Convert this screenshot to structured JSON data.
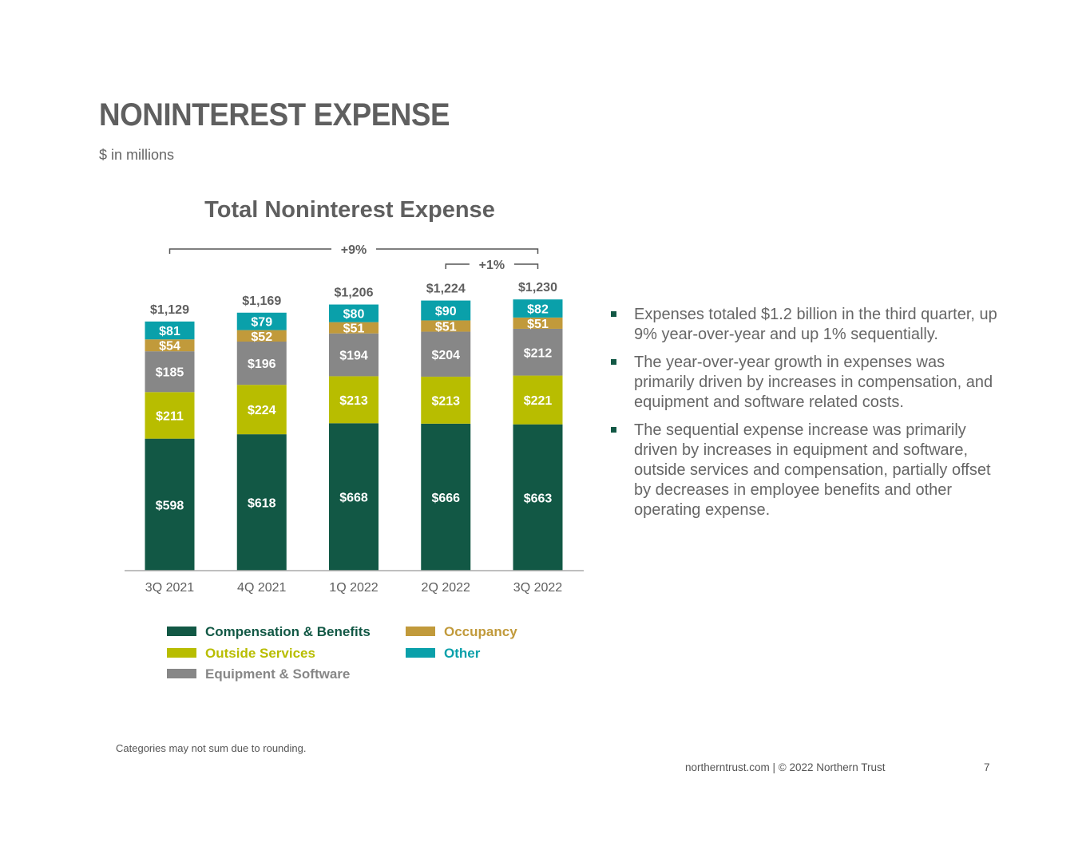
{
  "page": {
    "title": "NONINTEREST EXPENSE",
    "subtitle": "$ in millions",
    "bullets": [
      "Expenses totaled $1.2 billion in the third quarter, up 9% year-over-year and up 1% sequentially.",
      "The year-over-year growth in expenses was primarily driven by increases in compensation, and equipment and software related costs.",
      "The sequential expense increase was primarily driven by increases in equipment and software, outside services and compensation, partially offset by decreases in employee benefits and other operating expense."
    ],
    "footnote": "Categories may not sum due to rounding.",
    "footer": "northerntrust.com  |  © 2022 Northern Trust",
    "page_number": "7"
  },
  "chart_data": {
    "type": "bar",
    "stacked": true,
    "title": "Total Noninterest Expense",
    "categories": [
      "3Q 2021",
      "4Q 2021",
      "1Q 2022",
      "2Q 2022",
      "3Q 2022"
    ],
    "series": [
      {
        "name": "Compensation & Benefits",
        "color": "#125845",
        "values": [
          598,
          618,
          668,
          666,
          663
        ],
        "labels": [
          "$598",
          "$618",
          "$668",
          "$666",
          "$663"
        ]
      },
      {
        "name": "Outside Services",
        "color": "#b8bd00",
        "values": [
          211,
          224,
          213,
          213,
          221
        ],
        "labels": [
          "$211",
          "$224",
          "$213",
          "$213",
          "$221"
        ]
      },
      {
        "name": "Equipment & Software",
        "color": "#878787",
        "values": [
          185,
          196,
          194,
          204,
          212
        ],
        "labels": [
          "$185",
          "$196",
          "$194",
          "$204",
          "$212"
        ]
      },
      {
        "name": "Occupancy",
        "color": "#c19a3b",
        "values": [
          54,
          52,
          51,
          51,
          51
        ],
        "labels": [
          "$54",
          "$52",
          "$51",
          "$51",
          "$51"
        ]
      },
      {
        "name": "Other",
        "color": "#0aa0aa",
        "values": [
          81,
          79,
          80,
          90,
          82
        ],
        "labels": [
          "$81",
          "$79",
          "$80",
          "$90",
          "$82"
        ]
      }
    ],
    "totals": [
      1129,
      1169,
      1206,
      1224,
      1230
    ],
    "total_labels": [
      "$1,129",
      "$1,169",
      "$1,206",
      "$1,224",
      "$1,230"
    ],
    "legend_order": [
      "Compensation & Benefits",
      "Occupancy",
      "Outside Services",
      "Other",
      "Equipment & Software"
    ],
    "legend_position": "bottom",
    "annotations": [
      {
        "label": "+9%",
        "from": "3Q 2021",
        "to": "3Q 2022"
      },
      {
        "label": "+1%",
        "from": "2Q 2022",
        "to": "3Q 2022"
      }
    ],
    "grid": false
  }
}
